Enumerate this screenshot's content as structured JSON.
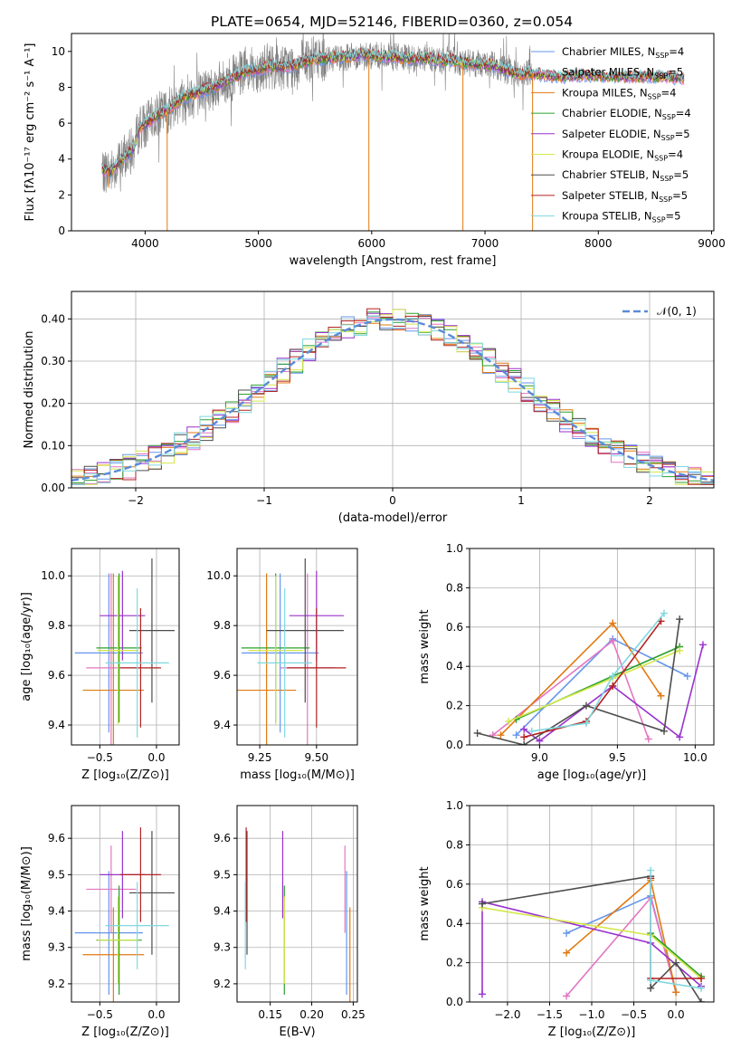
{
  "figure": {
    "title": "PLATE=0654, MJD=52146, FIBERID=0360, z=0.054"
  },
  "chart_data": [
    {
      "type": "line",
      "id": "spectrum",
      "xlabel": "wavelength [Angstrom, rest frame]",
      "ylabel": "Flux [fλ10⁻¹⁷ erg cm⁻² s⁻¹ A⁻¹]",
      "xlim": [
        3350,
        9020
      ],
      "ylim": [
        0,
        11
      ],
      "xticks": [
        4000,
        5000,
        6000,
        7000,
        8000,
        9000
      ],
      "yticks": [
        0,
        2,
        4,
        6,
        8,
        10
      ],
      "data_range": [
        3620,
        7420
      ],
      "model_range": [
        3620,
        8760
      ],
      "continuum": [
        [
          3620,
          3.4
        ],
        [
          3700,
          3.3
        ],
        [
          3800,
          4.0
        ],
        [
          3900,
          4.6
        ],
        [
          3950,
          5.8
        ],
        [
          4000,
          5.9
        ],
        [
          4100,
          6.4
        ],
        [
          4200,
          6.7
        ],
        [
          4300,
          7.3
        ],
        [
          4400,
          7.6
        ],
        [
          4500,
          7.8
        ],
        [
          4600,
          8.0
        ],
        [
          4700,
          8.3
        ],
        [
          4800,
          8.6
        ],
        [
          4900,
          8.9
        ],
        [
          5000,
          9.0
        ],
        [
          5100,
          9.2
        ],
        [
          5200,
          9.1
        ],
        [
          5300,
          9.2
        ],
        [
          5400,
          9.4
        ],
        [
          5500,
          9.6
        ],
        [
          5600,
          9.6
        ],
        [
          5700,
          9.7
        ],
        [
          5800,
          9.7
        ],
        [
          5900,
          9.8
        ],
        [
          6000,
          9.8
        ],
        [
          6100,
          9.7
        ],
        [
          6200,
          9.7
        ],
        [
          6300,
          9.6
        ],
        [
          6400,
          9.6
        ],
        [
          6500,
          9.6
        ],
        [
          6600,
          9.5
        ],
        [
          6700,
          9.5
        ],
        [
          6800,
          9.4
        ],
        [
          6900,
          9.3
        ],
        [
          7000,
          9.3
        ],
        [
          7100,
          9.2
        ],
        [
          7200,
          8.9
        ],
        [
          7300,
          8.7
        ],
        [
          7400,
          8.8
        ],
        [
          7500,
          8.7
        ],
        [
          7700,
          8.6
        ],
        [
          7900,
          8.7
        ],
        [
          8100,
          8.6
        ],
        [
          8300,
          8.6
        ],
        [
          8500,
          8.6
        ],
        [
          8760,
          8.5
        ]
      ],
      "series": [
        {
          "name": "Chabrier MILES",
          "nssp": "4",
          "color": "#6495ed"
        },
        {
          "name": "Salpeter MILES",
          "nssp": "5",
          "color": "#e377c2"
        },
        {
          "name": "Kroupa MILES",
          "nssp": "4",
          "color": "#e07a10"
        },
        {
          "name": "Chabrier ELODIE",
          "nssp": "4",
          "color": "#2ca02c"
        },
        {
          "name": "Salpeter ELODIE",
          "nssp": "5",
          "color": "#9932cc"
        },
        {
          "name": "Kroupa ELODIE",
          "nssp": "4",
          "color": "#d4e84a"
        },
        {
          "name": "Chabrier STELIB",
          "nssp": "5",
          "color": "#4d4d4d"
        },
        {
          "name": "Salpeter STELIB",
          "nssp": "5",
          "color": "#b22222"
        },
        {
          "name": "Kroupa STELIB",
          "nssp": "5",
          "color": "#7fd8df"
        }
      ],
      "data_color": "#808080"
    },
    {
      "type": "step",
      "id": "residuals",
      "xlabel": "(data-model)/error",
      "ylabel": "Normed distribution",
      "xlim": [
        -2.5,
        2.5
      ],
      "ylim": [
        0,
        0.465
      ],
      "xticks": [
        -2,
        -1,
        0,
        1,
        2
      ],
      "yticks": [
        0.0,
        0.1,
        0.2,
        0.3,
        0.4
      ],
      "bins": 50,
      "curve_label": "𝒩(0, 1)",
      "curve_color": "#5b8bd8"
    },
    {
      "type": "errorbar",
      "id": "z-age",
      "xlabel": "Z [log₁₀(Z/Z⊙)]",
      "ylabel": "age  [log₁₀(age/yr)]",
      "xlim": [
        -0.75,
        0.2
      ],
      "ylim": [
        9.32,
        10.11
      ],
      "xticks": [
        -0.5,
        0.0
      ],
      "yticks": [
        9.4,
        9.6,
        9.8,
        10.0
      ],
      "points": [
        {
          "x": -0.42,
          "xerr": 0.3,
          "y": 9.69,
          "yerr": 0.32,
          "color": "#6495ed"
        },
        {
          "x": -0.4,
          "xerr": 0.22,
          "y": 9.63,
          "yerr": 0.38,
          "color": "#e377c2"
        },
        {
          "x": -0.38,
          "xerr": 0.27,
          "y": 9.54,
          "yerr": 0.47,
          "color": "#e07a10"
        },
        {
          "x": -0.33,
          "xerr": 0.2,
          "y": 9.71,
          "yerr": 0.3,
          "color": "#2ca02c"
        },
        {
          "x": -0.3,
          "xerr": 0.2,
          "y": 9.84,
          "yerr": 0.18,
          "color": "#9932cc"
        },
        {
          "x": -0.34,
          "xerr": 0.18,
          "y": 9.7,
          "yerr": 0.3,
          "color": "#d4e84a"
        },
        {
          "x": -0.04,
          "xerr": 0.2,
          "y": 9.78,
          "yerr": 0.29,
          "color": "#4d4d4d"
        },
        {
          "x": -0.14,
          "xerr": 0.18,
          "y": 9.63,
          "yerr": 0.24,
          "color": "#b22222"
        },
        {
          "x": -0.17,
          "xerr": 0.28,
          "y": 9.65,
          "yerr": 0.3,
          "color": "#7fd8df"
        }
      ]
    },
    {
      "type": "errorbar",
      "id": "mass-age",
      "xlabel": "mass [log₁₀(M/M⊙)]",
      "ylabel": "",
      "xlim": [
        9.15,
        9.68
      ],
      "ylim": [
        9.32,
        10.11
      ],
      "xticks": [
        9.25,
        9.5
      ],
      "xticklabels": [
        "9.25",
        "9.50"
      ],
      "yticks": [
        9.4,
        9.6,
        9.8,
        10.0
      ],
      "points": [
        {
          "x": 9.34,
          "xerr": 0.17,
          "y": 9.69,
          "yerr": 0.32,
          "color": "#6495ed"
        },
        {
          "x": 9.46,
          "xerr": 0.12,
          "y": 9.63,
          "yerr": 0.38,
          "color": "#e377c2"
        },
        {
          "x": 9.28,
          "xerr": 0.13,
          "y": 9.54,
          "yerr": 0.47,
          "color": "#e07a10"
        },
        {
          "x": 9.32,
          "xerr": 0.15,
          "y": 9.71,
          "yerr": 0.3,
          "color": "#2ca02c"
        },
        {
          "x": 9.5,
          "xerr": 0.12,
          "y": 9.84,
          "yerr": 0.18,
          "color": "#9932cc"
        },
        {
          "x": 9.32,
          "xerr": 0.12,
          "y": 9.7,
          "yerr": 0.3,
          "color": "#d4e84a"
        },
        {
          "x": 9.45,
          "xerr": 0.17,
          "y": 9.78,
          "yerr": 0.29,
          "color": "#4d4d4d"
        },
        {
          "x": 9.5,
          "xerr": 0.13,
          "y": 9.63,
          "yerr": 0.24,
          "color": "#b22222"
        },
        {
          "x": 9.36,
          "xerr": 0.12,
          "y": 9.65,
          "yerr": 0.3,
          "color": "#7fd8df"
        }
      ]
    },
    {
      "type": "line",
      "id": "age-weights",
      "xlabel": "age  [log₁₀(age/yr)]",
      "ylabel": "mass weight",
      "xlim": [
        8.55,
        10.12
      ],
      "ylim": [
        0,
        1
      ],
      "xticks": [
        9.0,
        9.5,
        10.0
      ],
      "yticks": [
        0.0,
        0.2,
        0.4,
        0.6,
        0.8,
        1.0
      ],
      "series": [
        {
          "color": "#6495ed",
          "points": [
            [
              8.85,
              0.05
            ],
            [
              9.47,
              0.54
            ],
            [
              9.95,
              0.35
            ]
          ]
        },
        {
          "color": "#e377c2",
          "points": [
            [
              8.7,
              0.05
            ],
            [
              9.47,
              0.53
            ],
            [
              9.7,
              0.03
            ]
          ]
        },
        {
          "color": "#e07a10",
          "points": [
            [
              8.75,
              0.05
            ],
            [
              9.47,
              0.62
            ],
            [
              9.78,
              0.25
            ]
          ]
        },
        {
          "color": "#2ca02c",
          "points": [
            [
              8.85,
              0.13
            ],
            [
              9.47,
              0.35
            ],
            [
              9.9,
              0.5
            ]
          ]
        },
        {
          "color": "#9932cc",
          "points": [
            [
              8.9,
              0.08
            ],
            [
              9.0,
              0.02
            ],
            [
              9.47,
              0.3
            ],
            [
              9.9,
              0.04
            ],
            [
              10.05,
              0.51
            ]
          ]
        },
        {
          "color": "#d4e84a",
          "points": [
            [
              8.8,
              0.12
            ],
            [
              9.47,
              0.34
            ],
            [
              9.9,
              0.48
            ]
          ]
        },
        {
          "color": "#4d4d4d",
          "points": [
            [
              8.6,
              0.06
            ],
            [
              8.9,
              0.0
            ],
            [
              9.3,
              0.2
            ],
            [
              9.8,
              0.07
            ],
            [
              9.9,
              0.64
            ]
          ]
        },
        {
          "color": "#b22222",
          "points": [
            [
              8.9,
              0.04
            ],
            [
              9.3,
              0.12
            ],
            [
              9.47,
              0.3
            ],
            [
              9.78,
              0.63
            ]
          ]
        },
        {
          "color": "#7fd8df",
          "points": [
            [
              8.95,
              0.07
            ],
            [
              9.3,
              0.11
            ],
            [
              9.47,
              0.35
            ],
            [
              9.8,
              0.67
            ]
          ]
        }
      ]
    },
    {
      "type": "errorbar",
      "id": "z-mass",
      "xlabel": "Z [log₁₀(Z/Z⊙)]",
      "ylabel": "mass [log₁₀(M/M⊙)]",
      "xlim": [
        -0.75,
        0.2
      ],
      "ylim": [
        9.15,
        9.69
      ],
      "xticks": [
        -0.5,
        0.0
      ],
      "yticks": [
        9.2,
        9.3,
        9.4,
        9.5,
        9.6
      ],
      "points": [
        {
          "x": -0.42,
          "xerr": 0.3,
          "y": 9.34,
          "yerr": 0.17,
          "color": "#6495ed"
        },
        {
          "x": -0.4,
          "xerr": 0.22,
          "y": 9.46,
          "yerr": 0.12,
          "color": "#e377c2"
        },
        {
          "x": -0.38,
          "xerr": 0.27,
          "y": 9.28,
          "yerr": 0.13,
          "color": "#e07a10"
        },
        {
          "x": -0.33,
          "xerr": 0.2,
          "y": 9.32,
          "yerr": 0.15,
          "color": "#2ca02c"
        },
        {
          "x": -0.3,
          "xerr": 0.2,
          "y": 9.5,
          "yerr": 0.12,
          "color": "#9932cc"
        },
        {
          "x": -0.34,
          "xerr": 0.18,
          "y": 9.32,
          "yerr": 0.12,
          "color": "#d4e84a"
        },
        {
          "x": -0.04,
          "xerr": 0.2,
          "y": 9.45,
          "yerr": 0.17,
          "color": "#4d4d4d"
        },
        {
          "x": -0.14,
          "xerr": 0.18,
          "y": 9.5,
          "yerr": 0.13,
          "color": "#b22222"
        },
        {
          "x": -0.17,
          "xerr": 0.28,
          "y": 9.36,
          "yerr": 0.12,
          "color": "#7fd8df"
        }
      ]
    },
    {
      "type": "errorbar",
      "id": "ebv-mass",
      "xlabel": "E(B-V)",
      "ylabel": "",
      "xlim": [
        0.11,
        0.255
      ],
      "ylim": [
        9.15,
        9.69
      ],
      "xticks": [
        0.15,
        0.2,
        0.25
      ],
      "yticks": [
        9.2,
        9.3,
        9.4,
        9.5,
        9.6
      ],
      "points": [
        {
          "x": 0.242,
          "yerr": 0.17,
          "y": 9.34,
          "color": "#6495ed"
        },
        {
          "x": 0.24,
          "yerr": 0.12,
          "y": 9.46,
          "color": "#e377c2"
        },
        {
          "x": 0.246,
          "yerr": 0.13,
          "y": 9.28,
          "color": "#e07a10"
        },
        {
          "x": 0.167,
          "yerr": 0.15,
          "y": 9.32,
          "color": "#2ca02c"
        },
        {
          "x": 0.165,
          "yerr": 0.12,
          "y": 9.5,
          "color": "#9932cc"
        },
        {
          "x": 0.167,
          "yerr": 0.12,
          "y": 9.32,
          "color": "#d4e84a"
        },
        {
          "x": 0.122,
          "yerr": 0.17,
          "y": 9.45,
          "color": "#4d4d4d"
        },
        {
          "x": 0.121,
          "yerr": 0.13,
          "y": 9.5,
          "color": "#b22222"
        },
        {
          "x": 0.12,
          "yerr": 0.12,
          "y": 9.36,
          "color": "#7fd8df"
        }
      ]
    },
    {
      "type": "line",
      "id": "z-weights",
      "xlabel": "Z [log₁₀(Z/Z⊙)]",
      "ylabel": "mass weight",
      "xlim": [
        -2.45,
        0.45
      ],
      "ylim": [
        0,
        1
      ],
      "xticks": [
        -2.0,
        -1.5,
        -1.0,
        -0.5,
        0.0
      ],
      "yticks": [
        0.0,
        0.2,
        0.4,
        0.6,
        0.8,
        1.0
      ],
      "series": [
        {
          "color": "#6495ed",
          "points": [
            [
              -1.3,
              0.35
            ],
            [
              -0.3,
              0.54
            ],
            [
              0.0,
              0.05
            ]
          ]
        },
        {
          "color": "#e377c2",
          "points": [
            [
              -1.3,
              0.03
            ],
            [
              -0.3,
              0.53
            ],
            [
              0.0,
              0.05
            ]
          ]
        },
        {
          "color": "#e07a10",
          "points": [
            [
              -1.3,
              0.25
            ],
            [
              -0.3,
              0.62
            ],
            [
              0.0,
              0.05
            ]
          ]
        },
        {
          "color": "#2ca02c",
          "points": [
            [
              -0.3,
              0.35
            ],
            [
              0.3,
              0.13
            ]
          ]
        },
        {
          "color": "#9932cc",
          "points": [
            [
              -2.3,
              0.04
            ],
            [
              -2.3,
              0.51
            ],
            [
              -0.3,
              0.3
            ],
            [
              0.3,
              0.08
            ]
          ]
        },
        {
          "color": "#d4e84a",
          "points": [
            [
              -2.3,
              0.48
            ],
            [
              -0.3,
              0.34
            ],
            [
              0.3,
              0.12
            ]
          ]
        },
        {
          "color": "#4d4d4d",
          "points": [
            [
              -2.3,
              0.5
            ],
            [
              -0.3,
              0.64
            ],
            [
              -0.3,
              0.07
            ],
            [
              0.0,
              0.2
            ],
            [
              0.3,
              0.0
            ]
          ]
        },
        {
          "color": "#b22222",
          "points": [
            [
              -0.3,
              0.63
            ],
            [
              -0.3,
              0.12
            ],
            [
              0.3,
              0.12
            ]
          ]
        },
        {
          "color": "#7fd8df",
          "points": [
            [
              -0.3,
              0.67
            ],
            [
              -0.3,
              0.11
            ],
            [
              0.3,
              0.07
            ]
          ]
        }
      ]
    }
  ]
}
